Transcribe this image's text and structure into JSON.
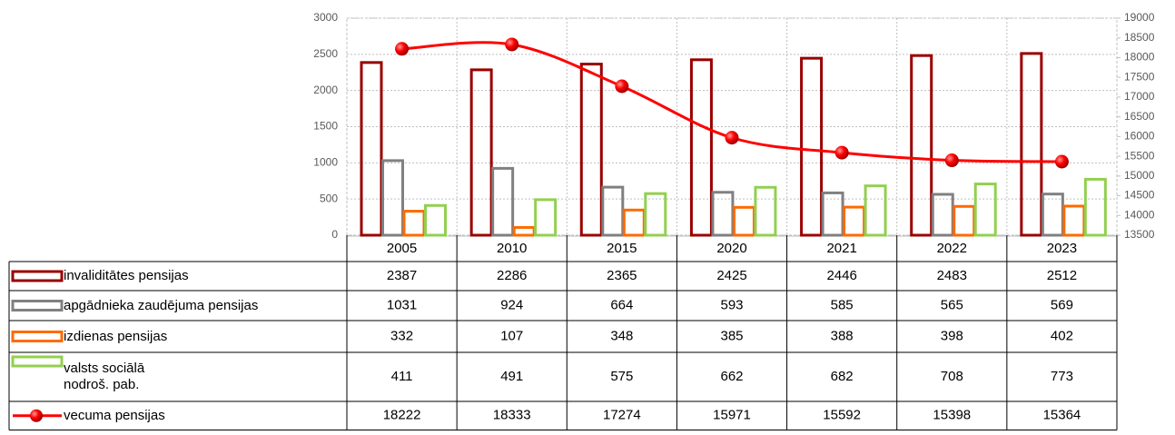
{
  "chart_data": {
    "type": "bar",
    "categories": [
      "2005",
      "2010",
      "2015",
      "2020",
      "2021",
      "2022",
      "2023"
    ],
    "series": [
      {
        "name": "invaliditātes pensijas",
        "color": "#990000",
        "values": [
          2387,
          2286,
          2365,
          2425,
          2446,
          2483,
          2512
        ]
      },
      {
        "name": "apgādnieka zaudējuma pensijas",
        "color": "#808080",
        "values": [
          1031,
          924,
          664,
          593,
          585,
          565,
          569
        ]
      },
      {
        "name": "izdienas pensijas",
        "color": "#ff6a00",
        "values": [
          332,
          107,
          348,
          385,
          388,
          398,
          402
        ]
      },
      {
        "name": "valsts sociālā\nnodroš. pab.",
        "color": "#92d050",
        "values": [
          411,
          491,
          575,
          662,
          682,
          708,
          773
        ]
      },
      {
        "name": "vecuma pensijas",
        "color": "#ff0000",
        "type": "line",
        "axis": "y2",
        "values": [
          18222,
          18333,
          17274,
          15971,
          15592,
          15398,
          15364
        ]
      }
    ],
    "ylim": [
      0,
      3000
    ],
    "yticks": [
      0,
      500,
      1000,
      1500,
      2000,
      2500,
      3000
    ],
    "y2lim": [
      13500,
      19000
    ],
    "y2ticks": [
      13500,
      14000,
      14500,
      15000,
      15500,
      16000,
      16500,
      17000,
      17500,
      18000,
      18500,
      19000
    ],
    "grid": true
  }
}
